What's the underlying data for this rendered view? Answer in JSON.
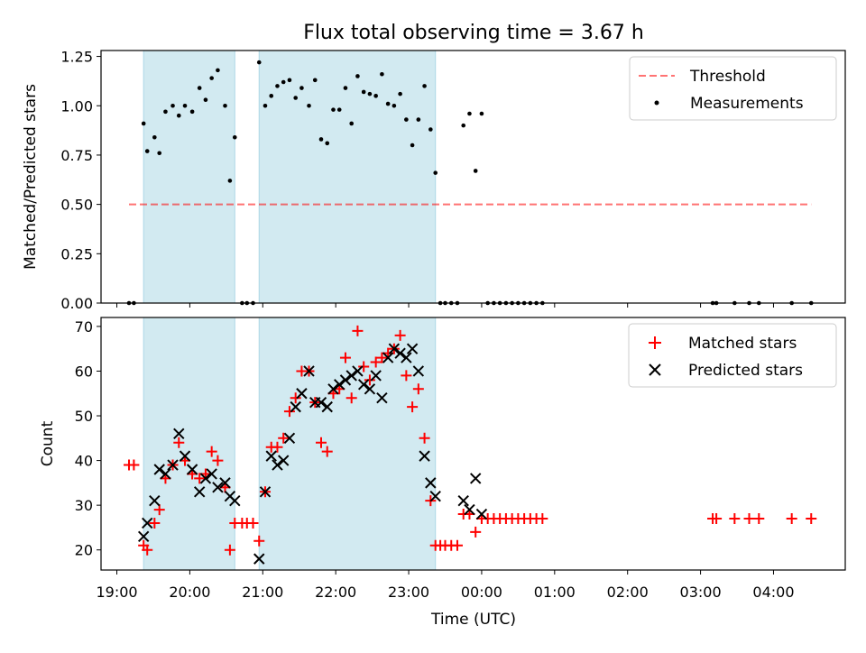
{
  "title": "Flux total observing time = 3.67 h",
  "colors": {
    "band": "#add8e6",
    "threshold": "#ff0000",
    "matched": "#ff0000",
    "predicted": "#000000",
    "measurement": "#000000"
  },
  "chart_data": [
    {
      "type": "scatter",
      "panel": "top",
      "ylabel": "Matched/Predicted stars",
      "xlabel": "",
      "ylim": [
        0,
        1.28
      ],
      "yticks": [
        "0.00",
        "0.25",
        "0.50",
        "0.75",
        "1.00",
        "1.25"
      ],
      "ytick_values": [
        0,
        0.25,
        0.5,
        0.75,
        1.0,
        1.25
      ],
      "legend_position": "upper-right",
      "legend": [
        "Threshold",
        "Measurements"
      ],
      "threshold": {
        "name": "Threshold",
        "y": 0.5,
        "x_start": "19:10",
        "x_end": "04:31",
        "style": "dashed"
      },
      "shaded_intervals": [
        [
          "19:22",
          "20:37"
        ],
        [
          "20:57",
          "23:22"
        ]
      ],
      "series": [
        {
          "name": "Measurements",
          "points": [
            [
              "19:10",
              0.0
            ],
            [
              "19:14",
              0.0
            ],
            [
              "19:22",
              0.91
            ],
            [
              "19:25",
              0.77
            ],
            [
              "19:31",
              0.84
            ],
            [
              "19:35",
              0.76
            ],
            [
              "19:40",
              0.97
            ],
            [
              "19:46",
              1.0
            ],
            [
              "19:51",
              0.95
            ],
            [
              "19:56",
              1.0
            ],
            [
              "20:02",
              0.97
            ],
            [
              "20:08",
              1.09
            ],
            [
              "20:13",
              1.03
            ],
            [
              "20:18",
              1.14
            ],
            [
              "20:23",
              1.18
            ],
            [
              "20:29",
              1.0
            ],
            [
              "20:33",
              0.62
            ],
            [
              "20:37",
              0.84
            ],
            [
              "20:43",
              0.0
            ],
            [
              "20:47",
              0.0
            ],
            [
              "20:52",
              0.0
            ],
            [
              "20:57",
              1.22
            ],
            [
              "21:02",
              1.0
            ],
            [
              "21:07",
              1.05
            ],
            [
              "21:12",
              1.1
            ],
            [
              "21:17",
              1.12
            ],
            [
              "21:22",
              1.13
            ],
            [
              "21:27",
              1.04
            ],
            [
              "21:32",
              1.09
            ],
            [
              "21:38",
              1.0
            ],
            [
              "21:43",
              1.13
            ],
            [
              "21:48",
              0.83
            ],
            [
              "21:53",
              0.81
            ],
            [
              "21:58",
              0.98
            ],
            [
              "22:03",
              0.98
            ],
            [
              "22:08",
              1.09
            ],
            [
              "22:13",
              0.91
            ],
            [
              "22:18",
              1.15
            ],
            [
              "22:23",
              1.07
            ],
            [
              "22:28",
              1.06
            ],
            [
              "22:33",
              1.05
            ],
            [
              "22:38",
              1.16
            ],
            [
              "22:43",
              1.01
            ],
            [
              "22:48",
              1.0
            ],
            [
              "22:53",
              1.06
            ],
            [
              "22:58",
              0.93
            ],
            [
              "23:03",
              0.8
            ],
            [
              "23:08",
              0.93
            ],
            [
              "23:13",
              1.1
            ],
            [
              "23:18",
              0.88
            ],
            [
              "23:22",
              0.66
            ],
            [
              "23:26",
              0.0
            ],
            [
              "23:30",
              0.0
            ],
            [
              "23:35",
              0.0
            ],
            [
              "23:40",
              0.0
            ],
            [
              "23:45",
              0.9
            ],
            [
              "23:50",
              0.96
            ],
            [
              "23:55",
              0.67
            ],
            [
              "00:00",
              0.96
            ],
            [
              "00:05",
              0.0
            ],
            [
              "00:10",
              0.0
            ],
            [
              "00:15",
              0.0
            ],
            [
              "00:20",
              0.0
            ],
            [
              "00:25",
              0.0
            ],
            [
              "00:30",
              0.0
            ],
            [
              "00:35",
              0.0
            ],
            [
              "00:40",
              0.0
            ],
            [
              "00:45",
              0.0
            ],
            [
              "00:50",
              0.0
            ],
            [
              "03:10",
              0.0
            ],
            [
              "03:13",
              0.0
            ],
            [
              "03:28",
              0.0
            ],
            [
              "03:40",
              0.0
            ],
            [
              "03:48",
              0.0
            ],
            [
              "04:15",
              0.0
            ],
            [
              "04:31",
              0.0
            ]
          ]
        }
      ]
    },
    {
      "type": "scatter",
      "panel": "bottom",
      "ylabel": "Count",
      "xlabel": "Time (UTC)",
      "ylim": [
        15.5,
        72
      ],
      "yticks": [
        "20",
        "30",
        "40",
        "50",
        "60",
        "70"
      ],
      "ytick_values": [
        20,
        30,
        40,
        50,
        60,
        70
      ],
      "xticks": [
        "19:00",
        "20:00",
        "21:00",
        "22:00",
        "23:00",
        "00:00",
        "01:00",
        "02:00",
        "03:00",
        "04:00"
      ],
      "xlim": [
        "18:47",
        "04:59"
      ],
      "legend_position": "upper-right",
      "legend": [
        "Matched stars",
        "Predicted stars"
      ],
      "shaded_intervals": [
        [
          "19:22",
          "20:37"
        ],
        [
          "20:57",
          "23:22"
        ]
      ],
      "series": [
        {
          "name": "Matched stars",
          "marker": "+",
          "points": [
            [
              "19:10",
              39
            ],
            [
              "19:14",
              39
            ],
            [
              "19:22",
              21
            ],
            [
              "19:25",
              20
            ],
            [
              "19:31",
              26
            ],
            [
              "19:35",
              29
            ],
            [
              "19:40",
              36
            ],
            [
              "19:46",
              39
            ],
            [
              "19:51",
              44
            ],
            [
              "19:56",
              40
            ],
            [
              "20:02",
              37
            ],
            [
              "20:08",
              36
            ],
            [
              "20:13",
              37
            ],
            [
              "20:18",
              42
            ],
            [
              "20:23",
              40
            ],
            [
              "20:29",
              34
            ],
            [
              "20:33",
              20
            ],
            [
              "20:37",
              26
            ],
            [
              "20:43",
              26
            ],
            [
              "20:47",
              26
            ],
            [
              "20:52",
              26
            ],
            [
              "20:57",
              22
            ],
            [
              "21:02",
              33
            ],
            [
              "21:07",
              43
            ],
            [
              "21:12",
              43
            ],
            [
              "21:17",
              45
            ],
            [
              "21:22",
              51
            ],
            [
              "21:27",
              54
            ],
            [
              "21:32",
              60
            ],
            [
              "21:38",
              60
            ],
            [
              "21:43",
              53
            ],
            [
              "21:48",
              44
            ],
            [
              "21:53",
              42
            ],
            [
              "21:58",
              55
            ],
            [
              "22:03",
              56
            ],
            [
              "22:08",
              63
            ],
            [
              "22:13",
              54
            ],
            [
              "22:18",
              69
            ],
            [
              "22:23",
              61
            ],
            [
              "22:28",
              58
            ],
            [
              "22:33",
              62
            ],
            [
              "22:38",
              63
            ],
            [
              "22:43",
              64
            ],
            [
              "22:48",
              65
            ],
            [
              "22:53",
              68
            ],
            [
              "22:58",
              59
            ],
            [
              "23:03",
              52
            ],
            [
              "23:08",
              56
            ],
            [
              "23:13",
              45
            ],
            [
              "23:18",
              31
            ],
            [
              "23:22",
              21
            ],
            [
              "23:26",
              21
            ],
            [
              "23:30",
              21
            ],
            [
              "23:35",
              21
            ],
            [
              "23:40",
              21
            ],
            [
              "23:45",
              28
            ],
            [
              "23:50",
              28
            ],
            [
              "23:55",
              24
            ],
            [
              "00:00",
              27
            ],
            [
              "00:05",
              27
            ],
            [
              "00:10",
              27
            ],
            [
              "00:15",
              27
            ],
            [
              "00:20",
              27
            ],
            [
              "00:25",
              27
            ],
            [
              "00:30",
              27
            ],
            [
              "00:35",
              27
            ],
            [
              "00:40",
              27
            ],
            [
              "00:45",
              27
            ],
            [
              "00:50",
              27
            ],
            [
              "03:10",
              27
            ],
            [
              "03:13",
              27
            ],
            [
              "03:28",
              27
            ],
            [
              "03:40",
              27
            ],
            [
              "03:48",
              27
            ],
            [
              "04:15",
              27
            ],
            [
              "04:31",
              27
            ]
          ]
        },
        {
          "name": "Predicted stars",
          "marker": "x",
          "points": [
            [
              "19:22",
              23
            ],
            [
              "19:25",
              26
            ],
            [
              "19:31",
              31
            ],
            [
              "19:35",
              38
            ],
            [
              "19:40",
              37
            ],
            [
              "19:46",
              39
            ],
            [
              "19:51",
              46
            ],
            [
              "19:56",
              41
            ],
            [
              "20:02",
              38
            ],
            [
              "20:08",
              33
            ],
            [
              "20:13",
              36
            ],
            [
              "20:18",
              37
            ],
            [
              "20:23",
              34
            ],
            [
              "20:29",
              35
            ],
            [
              "20:33",
              32
            ],
            [
              "20:37",
              31
            ],
            [
              "20:57",
              18
            ],
            [
              "21:02",
              33
            ],
            [
              "21:07",
              41
            ],
            [
              "21:12",
              39
            ],
            [
              "21:17",
              40
            ],
            [
              "21:22",
              45
            ],
            [
              "21:27",
              52
            ],
            [
              "21:32",
              55
            ],
            [
              "21:38",
              60
            ],
            [
              "21:43",
              53
            ],
            [
              "21:48",
              53
            ],
            [
              "21:53",
              52
            ],
            [
              "21:58",
              56
            ],
            [
              "22:03",
              57
            ],
            [
              "22:08",
              58
            ],
            [
              "22:13",
              59
            ],
            [
              "22:18",
              60
            ],
            [
              "22:23",
              57
            ],
            [
              "22:28",
              56
            ],
            [
              "22:33",
              59
            ],
            [
              "22:38",
              54
            ],
            [
              "22:43",
              63
            ],
            [
              "22:48",
              65
            ],
            [
              "22:53",
              64
            ],
            [
              "22:58",
              63
            ],
            [
              "23:03",
              65
            ],
            [
              "23:08",
              60
            ],
            [
              "23:13",
              41
            ],
            [
              "23:18",
              35
            ],
            [
              "23:22",
              32
            ],
            [
              "23:45",
              31
            ],
            [
              "23:50",
              29
            ],
            [
              "23:55",
              36
            ],
            [
              "00:00",
              28
            ]
          ]
        }
      ]
    }
  ]
}
